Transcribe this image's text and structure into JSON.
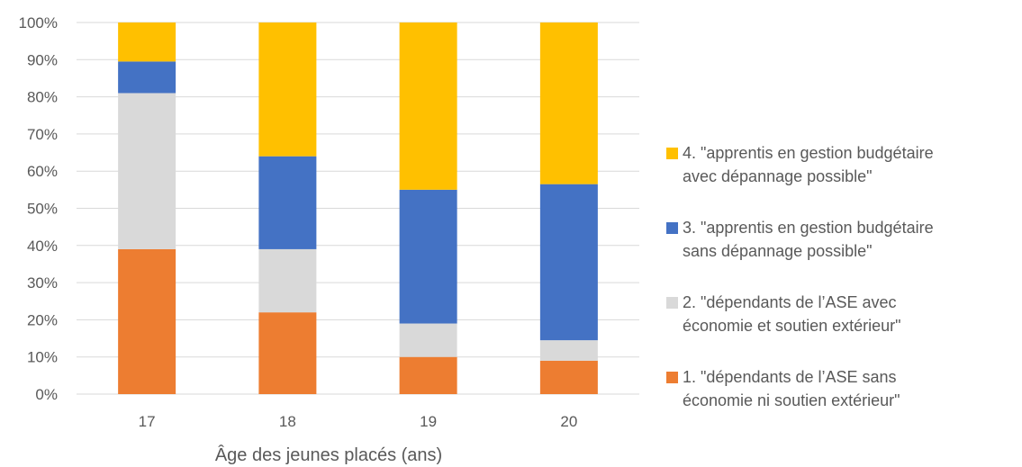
{
  "chart_data": {
    "type": "bar",
    "stacked": true,
    "percent": true,
    "title": "",
    "xlabel": "Âge des jeunes placés (ans)",
    "ylabel": "",
    "ylim": [
      0,
      100
    ],
    "yticks": [
      "0%",
      "10%",
      "20%",
      "30%",
      "40%",
      "50%",
      "60%",
      "70%",
      "80%",
      "90%",
      "100%"
    ],
    "categories": [
      "17",
      "18",
      "19",
      "20"
    ],
    "grid": "horizontal",
    "legend_position": "right",
    "series": [
      {
        "name": "1. \"dépendants de l’ASE sans économie ni soutien extérieur\"",
        "legend_lines": [
          "1. \"dépendants de l’ASE sans",
          "économie ni soutien extérieur\""
        ],
        "color": "#ED7D31",
        "values": [
          39,
          22,
          10,
          9
        ]
      },
      {
        "name": "2. \"dépendants de l’ASE avec économie et soutien extérieur\"",
        "legend_lines": [
          "2. \"dépendants de l’ASE avec",
          "économie et soutien extérieur\""
        ],
        "color": "#D9D9D9",
        "values": [
          42,
          17,
          9,
          5.5
        ]
      },
      {
        "name": "3. \"apprentis en gestion budgétaire sans dépannage possible\"",
        "legend_lines": [
          "3. \"apprentis en gestion budgétaire",
          "sans dépannage possible\""
        ],
        "color": "#4472C4",
        "values": [
          8.5,
          25,
          36,
          42
        ]
      },
      {
        "name": "4. \"apprentis en gestion budgétaire avec dépannage possible\"",
        "legend_lines": [
          "4. \"apprentis en gestion budgétaire",
          "avec dépannage possible\""
        ],
        "color": "#FFC000",
        "values": [
          10.5,
          36,
          45,
          43.5
        ]
      }
    ]
  }
}
